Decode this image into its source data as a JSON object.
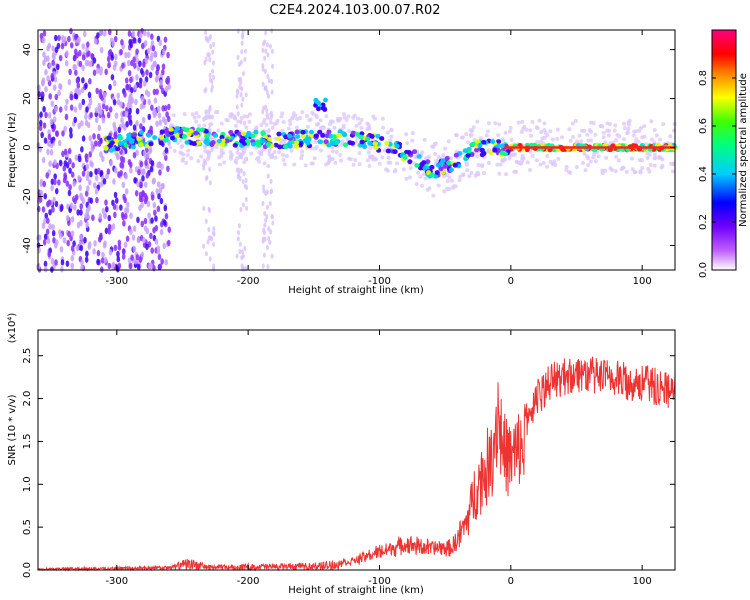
{
  "title": "C2E4.2024.103.00.07.R02",
  "chart_data": [
    {
      "type": "heatmap",
      "xlabel": "Height of straight line (km)",
      "ylabel": "Frequency (Hz)",
      "xlim": [
        -360,
        125
      ],
      "ylim": [
        -50,
        48
      ],
      "xticks": [
        -300,
        -200,
        -100,
        0,
        100
      ],
      "yticks": [
        -40,
        -20,
        0,
        20,
        40
      ],
      "colorbar": {
        "label": "Normalized spectral amplitude",
        "range": [
          0.0,
          1.0
        ],
        "ticks": [
          "0.0",
          "0.2",
          "0.4",
          "0.6",
          "0.8"
        ],
        "colors": [
          "#ffffff",
          "#a000ff",
          "#0000ff",
          "#00ffff",
          "#00ff00",
          "#ffff00",
          "#ff0000",
          "#ff0080"
        ]
      },
      "centerline": [
        {
          "x": -310,
          "y": 1
        },
        {
          "x": -260,
          "y": 5
        },
        {
          "x": -220,
          "y": 4
        },
        {
          "x": -180,
          "y": 3
        },
        {
          "x": -140,
          "y": 4
        },
        {
          "x": -110,
          "y": 3
        },
        {
          "x": -90,
          "y": 0
        },
        {
          "x": -75,
          "y": -4
        },
        {
          "x": -60,
          "y": -10
        },
        {
          "x": -40,
          "y": -5
        },
        {
          "x": -25,
          "y": 0
        },
        {
          "x": 0,
          "y": 0
        },
        {
          "x": 125,
          "y": 0
        }
      ],
      "features": [
        {
          "x": -145,
          "y": 17,
          "label": ""
        }
      ]
    },
    {
      "type": "line",
      "xlabel": "Height of straight line (km)",
      "ylabel": "SNR (10 * v/v)",
      "yscale_label": "(x10⁴)",
      "xlim": [
        -360,
        125
      ],
      "ylim": [
        0,
        2.8
      ],
      "xticks": [
        -300,
        -200,
        -100,
        0,
        100
      ],
      "yticks": [
        "0.0",
        "0.5",
        "1.0",
        "1.5",
        "2.0",
        "2.5"
      ],
      "series": [
        {
          "color": "#ee3333",
          "x": [
            -360,
            -300,
            -260,
            -245,
            -230,
            -200,
            -150,
            -120,
            -100,
            -80,
            -60,
            -45,
            -35,
            -25,
            -15,
            -10,
            -5,
            0,
            10,
            20,
            30,
            50,
            70,
            90,
            110,
            125
          ],
          "y": [
            0.02,
            0.03,
            0.04,
            0.12,
            0.05,
            0.06,
            0.07,
            0.12,
            0.25,
            0.35,
            0.3,
            0.3,
            0.6,
            1.2,
            1.5,
            2.2,
            1.6,
            1.5,
            1.7,
            2.0,
            2.2,
            2.3,
            2.25,
            2.2,
            2.15,
            2.1
          ]
        }
      ]
    }
  ]
}
